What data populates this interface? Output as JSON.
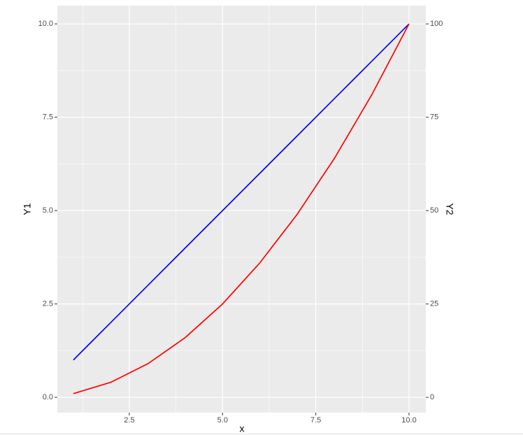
{
  "chart_data": {
    "type": "line",
    "x_label": "x",
    "y_label": "Y1",
    "y2_label": "Y2",
    "x": [
      1,
      2,
      3,
      4,
      5,
      6,
      7,
      8,
      9,
      10
    ],
    "series": [
      {
        "name": "Y1",
        "color": "#0000ff",
        "values": [
          1,
          2,
          3,
          4,
          5,
          6,
          7,
          8,
          9,
          10
        ]
      },
      {
        "name": "Y2",
        "color": "#ff0000",
        "axis": "y2",
        "values": [
          1,
          4,
          9,
          16,
          25,
          36,
          49,
          64,
          81,
          100
        ]
      }
    ],
    "xlim": [
      0.57,
      10.45
    ],
    "xticks": [
      2.5,
      {
        "value": 5,
        "label": "5.0"
      },
      7.5,
      {
        "value": 10,
        "label": "10.0"
      }
    ],
    "x_minor_grid": [
      1.25,
      3.75,
      6.25,
      8.75
    ],
    "ylim": [
      -0.41,
      10.49
    ],
    "yticks": [
      {
        "value": 0,
        "label": "0.0"
      },
      2.5,
      {
        "value": 5,
        "label": "5.0"
      },
      7.5,
      {
        "value": 10,
        "label": "10.0"
      }
    ],
    "y_minor_grid": [
      1.25,
      3.75,
      6.25,
      8.75
    ],
    "y2lim": [
      -4.1,
      104.9
    ],
    "y2ticks": [
      0,
      25,
      50,
      75,
      100
    ],
    "grid": true
  }
}
